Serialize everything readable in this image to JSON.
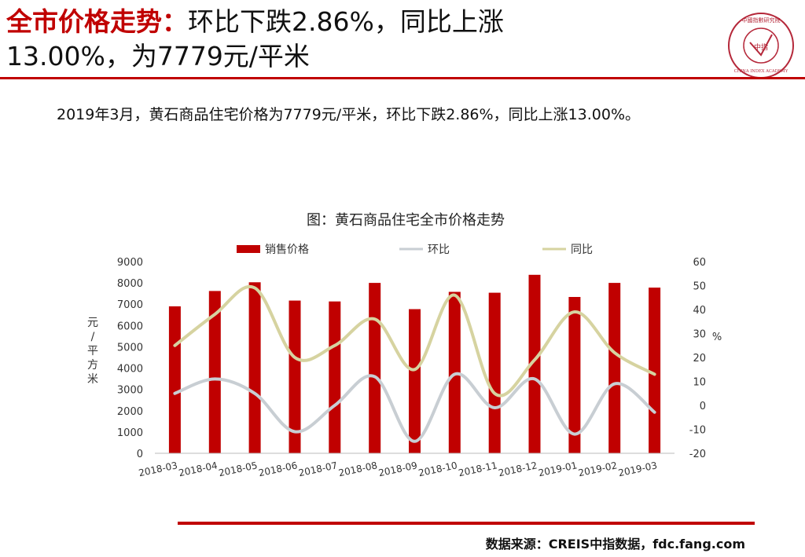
{
  "header": {
    "title_highlight": "全市价格走势：",
    "title_rest_line1": "环比下跌2.86%，同比上涨",
    "title_line2": "13.00%，为7779元/平米"
  },
  "summary": "2019年3月，黄石商品住宅价格为7779元/平米，环比下跌2.86%，同比上涨13.00%。",
  "logo": {
    "center_text": "中指",
    "ring_text": "CHINA INDEX ACADEMY",
    "top_text": "中國指數研究院"
  },
  "chart_data": {
    "type": "bar",
    "title": "图：黄石商品住宅全市价格走势",
    "categories": [
      "2018-03",
      "2018-04",
      "2018-05",
      "2018-06",
      "2018-07",
      "2018-08",
      "2018-09",
      "2018-10",
      "2018-11",
      "2018-12",
      "2019-01",
      "2019-02",
      "2019-03"
    ],
    "series": [
      {
        "name": "销售价格",
        "kind": "bar",
        "axis": "left",
        "color": "#c00000",
        "values": [
          6900,
          7620,
          8030,
          7170,
          7130,
          8000,
          6770,
          7580,
          7540,
          8380,
          7340,
          8000,
          7779
        ]
      },
      {
        "name": "环比",
        "kind": "line",
        "axis": "right",
        "color": "#c8ced3",
        "values": [
          5,
          11,
          5,
          -11,
          0,
          12,
          -15,
          13,
          -1,
          11,
          -12,
          9,
          -2.86
        ]
      },
      {
        "name": "同比",
        "kind": "line",
        "axis": "right",
        "color": "#d6d3a0",
        "values": [
          25,
          38,
          49,
          20,
          25,
          36,
          15,
          46,
          5,
          19,
          39,
          22,
          13
        ]
      }
    ],
    "ylabel": "元/平方米",
    "y2label": "%",
    "ylim": [
      0,
      9000
    ],
    "yticks": [
      "0",
      "1000",
      "2000",
      "3000",
      "4000",
      "5000",
      "6000",
      "7000",
      "8000",
      "9000"
    ],
    "y2lim": [
      -20,
      60
    ],
    "y2ticks": [
      "-20",
      "-10",
      "0",
      "10",
      "20",
      "30",
      "40",
      "50",
      "60"
    ],
    "legend_position": "top",
    "grid": false
  },
  "footer": {
    "source": "数据来源：CREIS中指数据，fdc.fang.com"
  }
}
